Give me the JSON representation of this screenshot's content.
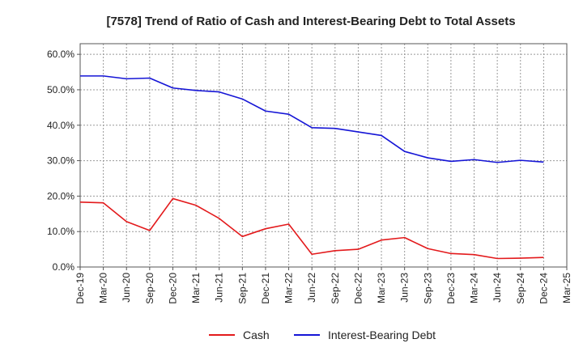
{
  "chart_data": {
    "type": "line",
    "title": "[7578]  Trend of Ratio of Cash and Interest-Bearing Debt to Total Assets",
    "xlabel": "",
    "ylabel": "",
    "x_ticks": [
      "Dec-19",
      "Mar-20",
      "Jun-20",
      "Sep-20",
      "Dec-20",
      "Mar-21",
      "Jun-21",
      "Sep-21",
      "Dec-21",
      "Mar-22",
      "Jun-22",
      "Sep-22",
      "Dec-22",
      "Mar-23",
      "Jun-23",
      "Sep-23",
      "Dec-23",
      "Mar-24",
      "Jun-24",
      "Sep-24",
      "Dec-24",
      "Mar-25"
    ],
    "y_ticks": [
      "0.0%",
      "10.0%",
      "20.0%",
      "30.0%",
      "40.0%",
      "50.0%",
      "60.0%"
    ],
    "ylim": [
      0,
      63
    ],
    "grid": true,
    "legend_position": "bottom",
    "categories": [
      "Dec-19",
      "Mar-20",
      "Jun-20",
      "Sep-20",
      "Dec-20",
      "Mar-21",
      "Jun-21",
      "Sep-21",
      "Dec-21",
      "Mar-22",
      "Jun-22",
      "Sep-22",
      "Dec-22",
      "Mar-23",
      "Jun-23",
      "Sep-23",
      "Dec-23",
      "Mar-24",
      "Jun-24",
      "Sep-24",
      "Dec-24"
    ],
    "series": [
      {
        "name": "Cash",
        "color": "#e31a1c",
        "values": [
          18.3,
          18.1,
          12.8,
          10.3,
          19.3,
          17.4,
          13.7,
          8.6,
          10.8,
          12.1,
          3.6,
          4.6,
          5.0,
          7.6,
          8.3,
          5.2,
          3.8,
          3.5,
          2.4,
          2.5,
          2.7
        ]
      },
      {
        "name": "Interest-Bearing Debt",
        "color": "#1515d6",
        "values": [
          53.9,
          53.9,
          53.1,
          53.3,
          50.5,
          49.8,
          49.4,
          47.4,
          44.0,
          43.1,
          39.3,
          39.1,
          38.1,
          37.1,
          32.6,
          30.8,
          29.8,
          30.3,
          29.5,
          30.1,
          29.6
        ]
      }
    ]
  }
}
